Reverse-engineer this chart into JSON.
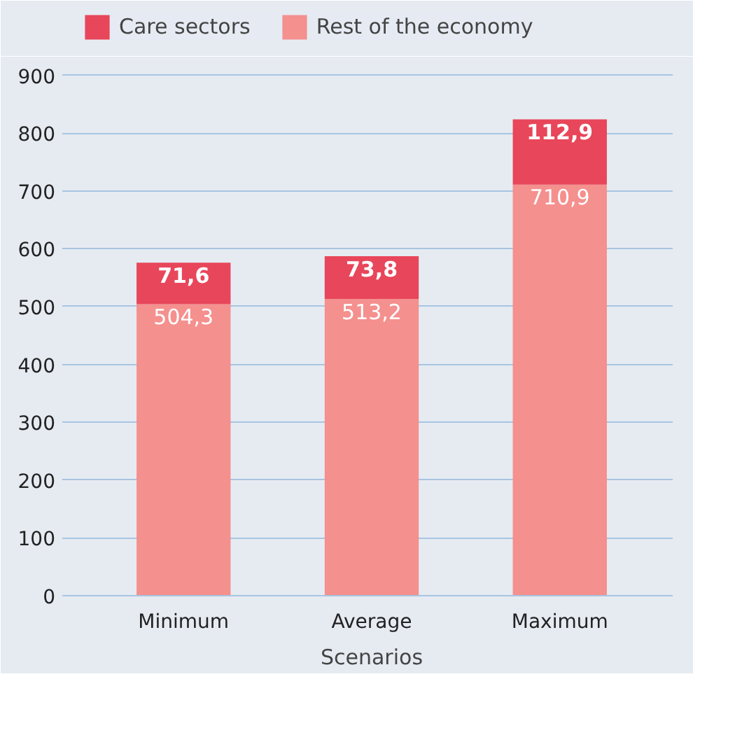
{
  "chart_data": {
    "type": "bar",
    "stacked": true,
    "categories": [
      "Minimum",
      "Average",
      "Maximum"
    ],
    "xlabel": "Scenarios",
    "series": [
      {
        "name": "Rest of the economy",
        "color": "#f4908e",
        "values": [
          504.3,
          513.2,
          710.9
        ],
        "value_labels": [
          "504,3",
          "513,2",
          "710,9"
        ]
      },
      {
        "name": "Care sectors",
        "color": "#e8465a",
        "values": [
          71.6,
          73.8,
          112.9
        ],
        "value_labels": [
          "71,6",
          "73,8",
          "112,9"
        ]
      }
    ],
    "ylim": [
      0,
      920
    ],
    "yticks": [
      0,
      100,
      200,
      300,
      400,
      500,
      600,
      700,
      800,
      900
    ],
    "grid": "y",
    "legend": "top left"
  }
}
